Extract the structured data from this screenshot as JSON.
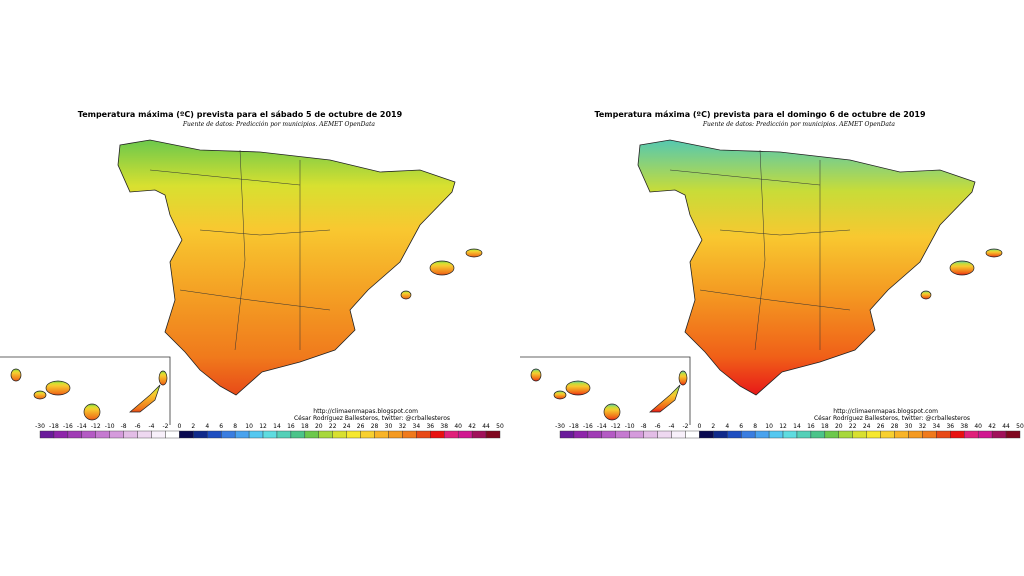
{
  "maps": [
    {
      "title": "Temperatura máxima (ºC) prevista para el sábado 5 de octubre de 2019",
      "source": "Fuente de datos: Predicción por municipios. AEMET OpenData",
      "credit_url": "http://climaenmapas.blogspot.com",
      "credit_author": "César Rodríguez Ballesteros, twitter: @crballesteros"
    },
    {
      "title": "Temperatura máxima (ºC) prevista para el domingo 6 de octubre de 2019",
      "source": "Fuente de datos: Predicción por municipios. AEMET OpenData",
      "credit_url": "http://climaenmapas.blogspot.com",
      "credit_author": "César Rodríguez Ballesteros, twitter: @crballesteros"
    }
  ],
  "scale_labels": [
    "-30",
    "-18",
    "-16",
    "-14",
    "-12",
    "-10",
    "-8",
    "-6",
    "-4",
    "-2",
    "0",
    "2",
    "4",
    "6",
    "8",
    "10",
    "12",
    "14",
    "16",
    "18",
    "20",
    "22",
    "24",
    "26",
    "28",
    "30",
    "32",
    "34",
    "36",
    "38",
    "40",
    "42",
    "44",
    "50"
  ],
  "scale_colors": [
    "#6a1b9a",
    "#8e24aa",
    "#a03cb5",
    "#b45ac4",
    "#c57ad0",
    "#d59bdc",
    "#e3bde6",
    "#eed8f0",
    "#f8f0fa",
    "#ffffff",
    "#0a0a50",
    "#102a8a",
    "#1f4fc0",
    "#3a7de0",
    "#4aa3ee",
    "#55c8f0",
    "#5edce0",
    "#55d0b8",
    "#4cc48a",
    "#6cc84c",
    "#a8d83c",
    "#d8e030",
    "#f6e830",
    "#f8d030",
    "#f8b428",
    "#f49a22",
    "#f07a1c",
    "#e84a18",
    "#e81010",
    "#e0207a",
    "#d01890",
    "#a0105a",
    "#800820"
  ]
}
